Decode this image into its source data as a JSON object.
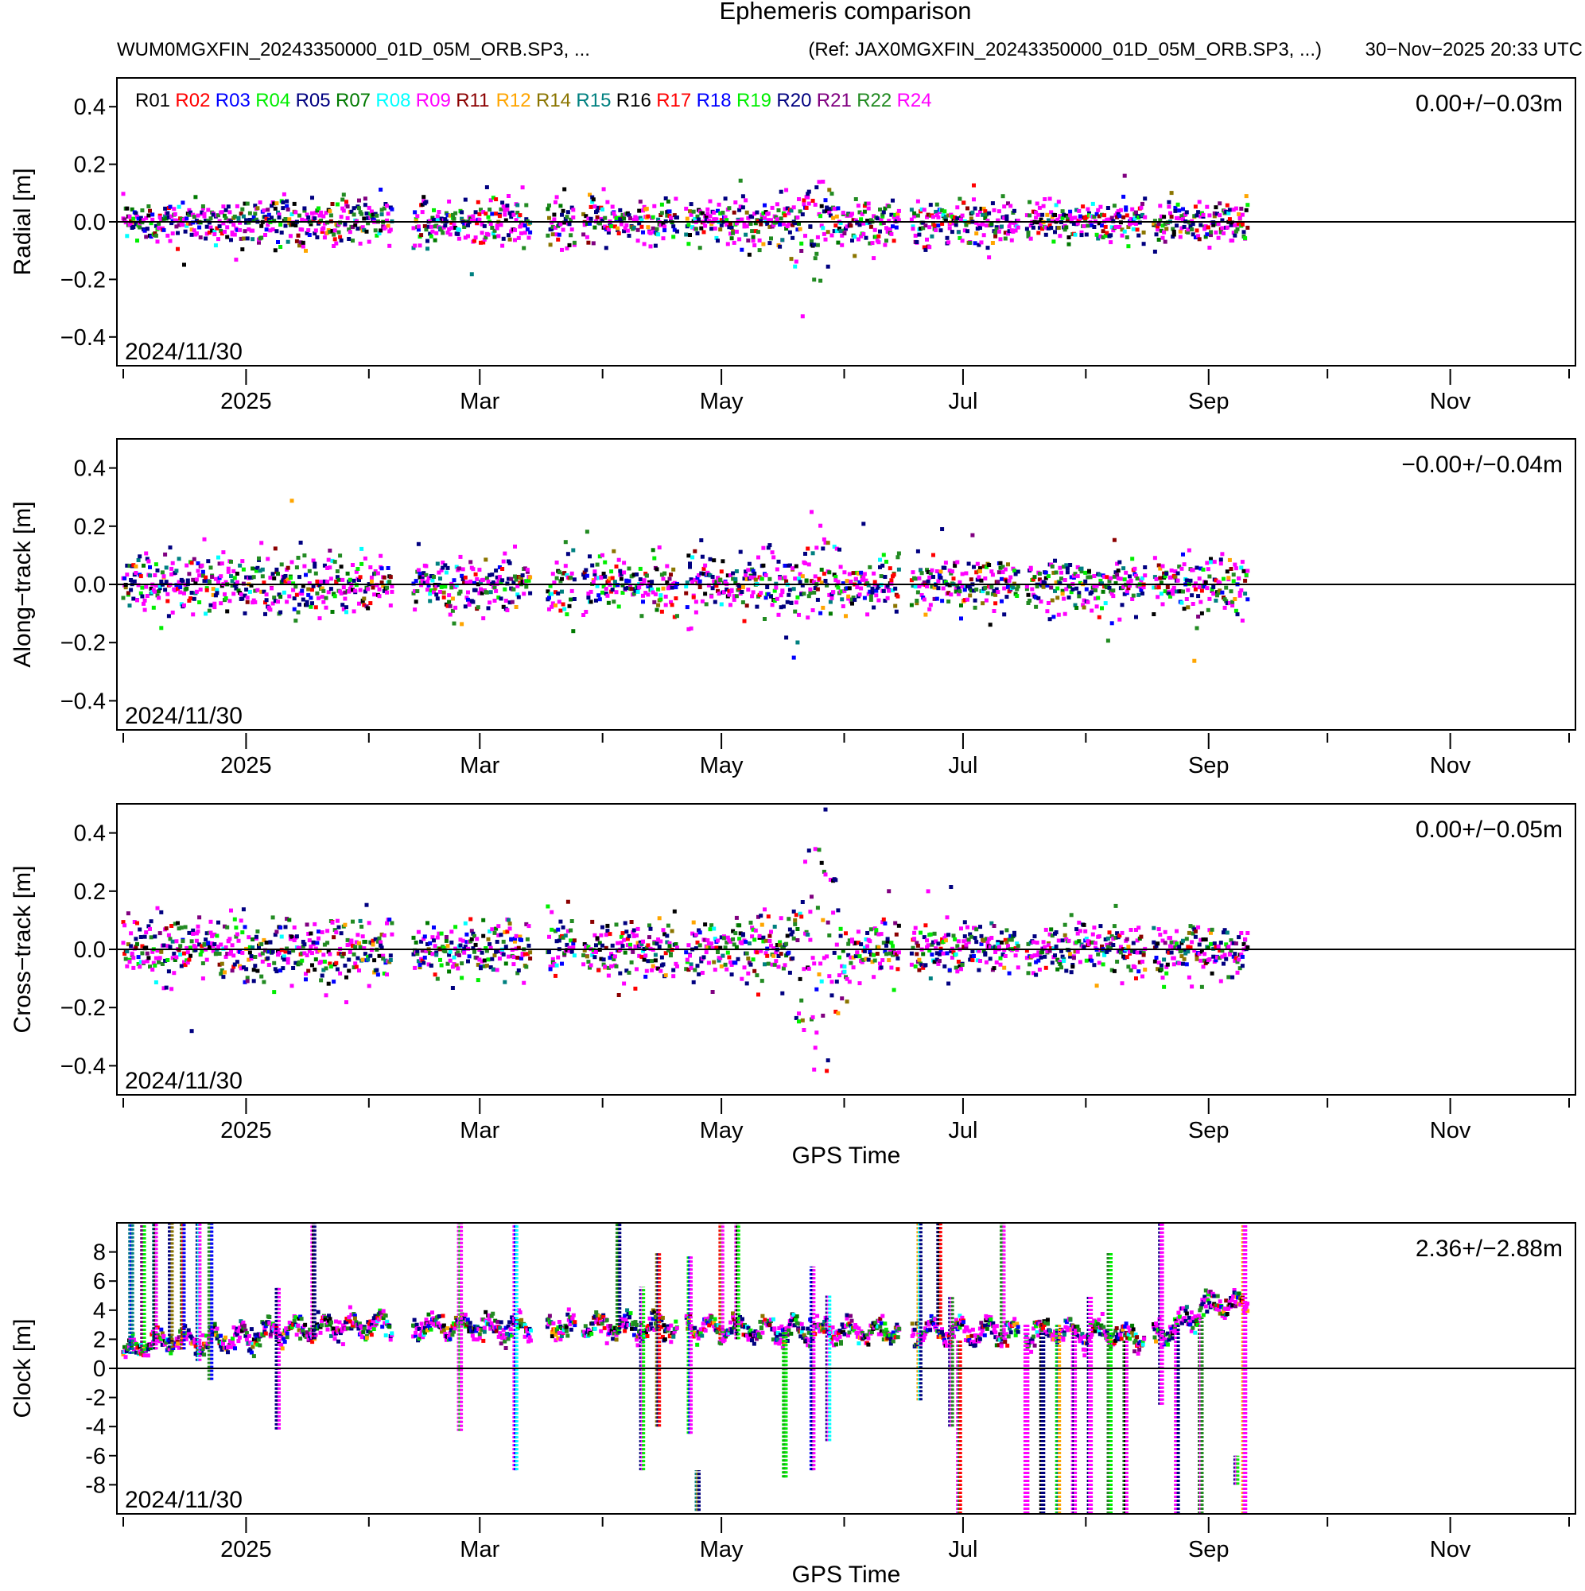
{
  "header": {
    "title": "Ephemeris comparison",
    "files": "WUM0MGXFIN_20243350000_01D_05M_ORB.SP3, ...",
    "reference": "(Ref: JAX0MGXFIN_20243350000_01D_05M_ORB.SP3, ...)",
    "generated": "30−Nov−2025 20:33 UTC"
  },
  "legend": [
    {
      "name": "R01",
      "color": "#000000"
    },
    {
      "name": "R02",
      "color": "#ff0000"
    },
    {
      "name": "R03",
      "color": "#0000ff"
    },
    {
      "name": "R04",
      "color": "#00ee00"
    },
    {
      "name": "R05",
      "color": "#000080"
    },
    {
      "name": "R07",
      "color": "#007a00"
    },
    {
      "name": "R08",
      "color": "#00ffff"
    },
    {
      "name": "R09",
      "color": "#ff00ff"
    },
    {
      "name": "R11",
      "color": "#8b0000"
    },
    {
      "name": "R12",
      "color": "#ffa500"
    },
    {
      "name": "R14",
      "color": "#8b7500"
    },
    {
      "name": "R15",
      "color": "#008080"
    },
    {
      "name": "R16",
      "color": "#000000"
    },
    {
      "name": "R17",
      "color": "#ff0000"
    },
    {
      "name": "R18",
      "color": "#0000ff"
    },
    {
      "name": "R19",
      "color": "#00ee00"
    },
    {
      "name": "R20",
      "color": "#000080"
    },
    {
      "name": "R21",
      "color": "#800080"
    },
    {
      "name": "R22",
      "color": "#228b22"
    },
    {
      "name": "R24",
      "color": "#ff00ff"
    }
  ],
  "chart_data": [
    {
      "type": "scatter",
      "title": "Radial",
      "ylabel": "Radial [m]",
      "xlabel": "",
      "stat": "0.00+/−0.03m",
      "date_label": "2024/11/30",
      "ylim": [
        -0.5,
        0.5
      ],
      "yticks": [
        -0.4,
        -0.2,
        0.0,
        0.2,
        0.4
      ],
      "ytick_labels": [
        "−0.4",
        "−0.2",
        "0.0",
        "0.2",
        "0.4"
      ],
      "x_start_day": 0,
      "x_end_day": 365,
      "x_unit": "days since 2024-12-01",
      "xticks_labeled": [
        {
          "day": 31,
          "label": "2025"
        },
        {
          "day": 90,
          "label": "Mar"
        },
        {
          "day": 151,
          "label": "May"
        },
        {
          "day": 212,
          "label": "Jul"
        },
        {
          "day": 274,
          "label": "Sep"
        },
        {
          "day": 335,
          "label": "Nov"
        }
      ],
      "xticks_minor": [
        0,
        62,
        121,
        182,
        243,
        304,
        365
      ],
      "data_end_day": 284,
      "spread_envelope": [
        {
          "day": 0,
          "sd": 0.035
        },
        {
          "day": 40,
          "sd": 0.04
        },
        {
          "day": 100,
          "sd": 0.04
        },
        {
          "day": 150,
          "sd": 0.035
        },
        {
          "day": 170,
          "sd": 0.05
        },
        {
          "day": 178,
          "sd": 0.12
        },
        {
          "day": 180,
          "sd": 0.05
        },
        {
          "day": 230,
          "sd": 0.035
        },
        {
          "day": 284,
          "sd": 0.035
        }
      ]
    },
    {
      "type": "scatter",
      "title": "Along-track",
      "ylabel": "Along−track [m]",
      "xlabel": "",
      "stat": "−0.00+/−0.04m",
      "date_label": "2024/11/30",
      "ylim": [
        -0.5,
        0.5
      ],
      "yticks": [
        -0.4,
        -0.2,
        0.0,
        0.2,
        0.4
      ],
      "ytick_labels": [
        "−0.4",
        "−0.2",
        "0.0",
        "0.2",
        "0.4"
      ],
      "x_start_day": 0,
      "x_end_day": 365,
      "x_unit": "days since 2024-12-01",
      "xticks_labeled": [
        {
          "day": 31,
          "label": "2025"
        },
        {
          "day": 90,
          "label": "Mar"
        },
        {
          "day": 151,
          "label": "May"
        },
        {
          "day": 212,
          "label": "Jul"
        },
        {
          "day": 274,
          "label": "Sep"
        },
        {
          "day": 335,
          "label": "Nov"
        }
      ],
      "xticks_minor": [
        0,
        62,
        121,
        182,
        243,
        304,
        365
      ],
      "data_end_day": 284,
      "spread_envelope": [
        {
          "day": 0,
          "sd": 0.05
        },
        {
          "day": 60,
          "sd": 0.05
        },
        {
          "day": 120,
          "sd": 0.05
        },
        {
          "day": 160,
          "sd": 0.05
        },
        {
          "day": 178,
          "sd": 0.13
        },
        {
          "day": 180,
          "sd": 0.05
        },
        {
          "day": 230,
          "sd": 0.045
        },
        {
          "day": 284,
          "sd": 0.045
        }
      ]
    },
    {
      "type": "scatter",
      "title": "Cross-track",
      "ylabel": "Cross−track [m]",
      "xlabel": "GPS Time",
      "stat": "0.00+/−0.05m",
      "date_label": "2024/11/30",
      "ylim": [
        -0.5,
        0.5
      ],
      "yticks": [
        -0.4,
        -0.2,
        0.0,
        0.2,
        0.4
      ],
      "ytick_labels": [
        "−0.4",
        "−0.2",
        "0.0",
        "0.2",
        "0.4"
      ],
      "x_start_day": 0,
      "x_end_day": 365,
      "x_unit": "days since 2024-12-01",
      "xticks_labeled": [
        {
          "day": 31,
          "label": "2025"
        },
        {
          "day": 90,
          "label": "Mar"
        },
        {
          "day": 151,
          "label": "May"
        },
        {
          "day": 212,
          "label": "Jul"
        },
        {
          "day": 274,
          "label": "Sep"
        },
        {
          "day": 335,
          "label": "Nov"
        }
      ],
      "xticks_minor": [
        0,
        62,
        121,
        182,
        243,
        304,
        365
      ],
      "data_end_day": 284,
      "spread_envelope": [
        {
          "day": 0,
          "sd": 0.055
        },
        {
          "day": 60,
          "sd": 0.05
        },
        {
          "day": 120,
          "sd": 0.05
        },
        {
          "day": 168,
          "sd": 0.06
        },
        {
          "day": 174,
          "sd": 0.25
        },
        {
          "day": 180,
          "sd": 0.25
        },
        {
          "day": 182,
          "sd": 0.05
        },
        {
          "day": 230,
          "sd": 0.04
        },
        {
          "day": 284,
          "sd": 0.04
        }
      ]
    },
    {
      "type": "scatter",
      "title": "Clock",
      "ylabel": "Clock [m]",
      "xlabel": "GPS Time",
      "stat": "2.36+/−2.88m",
      "date_label": "2024/11/30",
      "ylim": [
        -10,
        10
      ],
      "yticks": [
        -8,
        -6,
        -4,
        -2,
        0,
        2,
        4,
        6,
        8
      ],
      "ytick_labels": [
        "-8",
        "-6",
        "-4",
        "-2",
        "0",
        "2",
        "4",
        "6",
        "8"
      ],
      "x_start_day": 0,
      "x_end_day": 365,
      "x_unit": "days since 2024-12-01",
      "xticks_labeled": [
        {
          "day": 31,
          "label": "2025"
        },
        {
          "day": 90,
          "label": "Mar"
        },
        {
          "day": 151,
          "label": "May"
        },
        {
          "day": 212,
          "label": "Jul"
        },
        {
          "day": 274,
          "label": "Sep"
        },
        {
          "day": 335,
          "label": "Nov"
        }
      ],
      "xticks_minor": [
        0,
        62,
        121,
        182,
        243,
        304,
        365
      ],
      "data_end_day": 284,
      "baseline": [
        {
          "day": 0,
          "m": 1.0
        },
        {
          "day": 8,
          "m": 1.8
        },
        {
          "day": 25,
          "m": 2.0
        },
        {
          "day": 40,
          "m": 2.5
        },
        {
          "day": 60,
          "m": 3.0
        },
        {
          "day": 90,
          "m": 2.8
        },
        {
          "day": 120,
          "m": 2.9
        },
        {
          "day": 150,
          "m": 2.8
        },
        {
          "day": 180,
          "m": 2.5
        },
        {
          "day": 210,
          "m": 2.6
        },
        {
          "day": 240,
          "m": 2.5
        },
        {
          "day": 262,
          "m": 2.2
        },
        {
          "day": 275,
          "m": 4.5
        },
        {
          "day": 284,
          "m": 4.3
        }
      ],
      "excursions": [
        {
          "day": 2,
          "low": 1.0,
          "high": 10
        },
        {
          "day": 5,
          "low": 1.2,
          "high": 10
        },
        {
          "day": 8,
          "low": 1.3,
          "high": 10
        },
        {
          "day": 12,
          "low": 1.4,
          "high": 10
        },
        {
          "day": 15,
          "low": 1.3,
          "high": 10
        },
        {
          "day": 19,
          "low": 0.5,
          "high": 10
        },
        {
          "day": 22,
          "low": -0.8,
          "high": 10
        },
        {
          "day": 39,
          "low": -4.2,
          "high": 5.6
        },
        {
          "day": 48,
          "low": 2.0,
          "high": 10
        },
        {
          "day": 85,
          "low": -4.3,
          "high": 10
        },
        {
          "day": 99,
          "low": -7.0,
          "high": 10
        },
        {
          "day": 125,
          "low": 2.4,
          "high": 10
        },
        {
          "day": 131,
          "low": -7.0,
          "high": 5.6
        },
        {
          "day": 135,
          "low": -4.0,
          "high": 8.0
        },
        {
          "day": 143,
          "low": -4.5,
          "high": 7.8
        },
        {
          "day": 145,
          "low": -9.8,
          "high": -7.0
        },
        {
          "day": 151,
          "low": 2.0,
          "high": 10
        },
        {
          "day": 155,
          "low": 2.0,
          "high": 10
        },
        {
          "day": 167,
          "low": -7.5,
          "high": 2.5
        },
        {
          "day": 174,
          "low": -7.0,
          "high": 7.0
        },
        {
          "day": 178,
          "low": -5.0,
          "high": 5.0
        },
        {
          "day": 201,
          "low": -2.2,
          "high": 10
        },
        {
          "day": 206,
          "low": 3.0,
          "high": 10
        },
        {
          "day": 209,
          "low": -4.0,
          "high": 5.0
        },
        {
          "day": 211,
          "low": -10,
          "high": 2.0
        },
        {
          "day": 222,
          "low": 2.0,
          "high": 10
        },
        {
          "day": 228,
          "low": -10,
          "high": 3.0
        },
        {
          "day": 232,
          "low": -10,
          "high": 2.5
        },
        {
          "day": 236,
          "low": -10,
          "high": 3.0
        },
        {
          "day": 240,
          "low": -10,
          "high": 2.8
        },
        {
          "day": 244,
          "low": -10,
          "high": 5.0
        },
        {
          "day": 249,
          "low": -10,
          "high": 8.0
        },
        {
          "day": 253,
          "low": -10,
          "high": 2.0
        },
        {
          "day": 262,
          "low": -2.5,
          "high": 10
        },
        {
          "day": 266,
          "low": -10,
          "high": 3.0
        },
        {
          "day": 272,
          "low": -10,
          "high": 3.5
        },
        {
          "day": 281,
          "low": -8.0,
          "high": -6.0
        },
        {
          "day": 283,
          "low": -10,
          "high": 10
        }
      ]
    }
  ]
}
